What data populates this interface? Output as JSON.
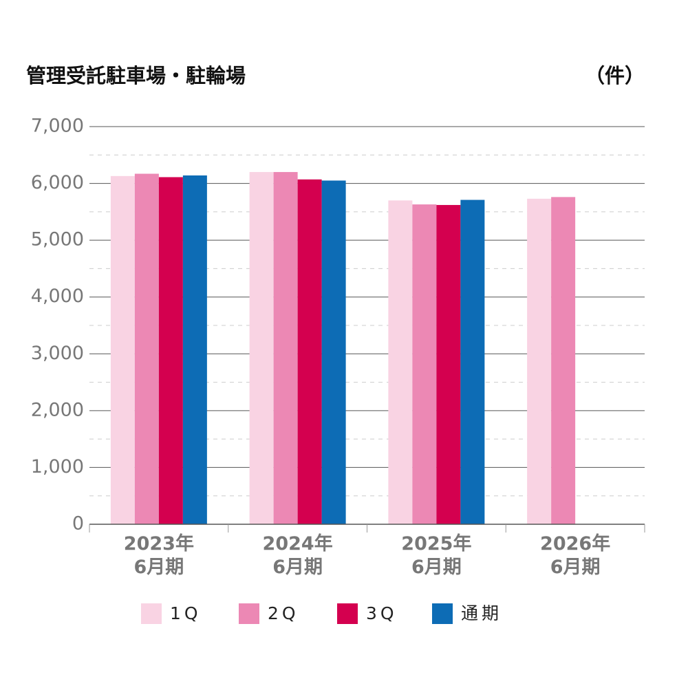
{
  "chart_data": {
    "type": "bar",
    "title": "管理受託駐車場・駐輪場",
    "unit_label": "（件）",
    "categories": [
      "2023年\n6月期",
      "2024年\n6月期",
      "2025年\n6月期",
      "2026年\n6月期"
    ],
    "series": [
      {
        "name": "1Q",
        "color": "#f9d3e3",
        "values": [
          6130,
          6200,
          5700,
          5730
        ]
      },
      {
        "name": "2Q",
        "color": "#ec88b4",
        "values": [
          6170,
          6200,
          5630,
          5760
        ]
      },
      {
        "name": "3Q",
        "color": "#d4004f",
        "values": [
          6110,
          6070,
          5620,
          null
        ]
      },
      {
        "name": "通期",
        "color": "#0d6cb5",
        "values": [
          6140,
          6050,
          5710,
          null
        ]
      }
    ],
    "ylim": [
      0,
      7000
    ],
    "yticks": [
      0,
      {
        "value": 1000,
        "label": "1,000"
      },
      {
        "value": 2000,
        "label": "2,000"
      },
      {
        "value": 3000,
        "label": "3,000"
      },
      {
        "value": 4000,
        "label": "4,000"
      },
      {
        "value": 5000,
        "label": "5,000"
      },
      {
        "value": 6000,
        "label": "6,000"
      },
      {
        "value": 7000,
        "label": "7,000"
      }
    ],
    "grid": true
  }
}
